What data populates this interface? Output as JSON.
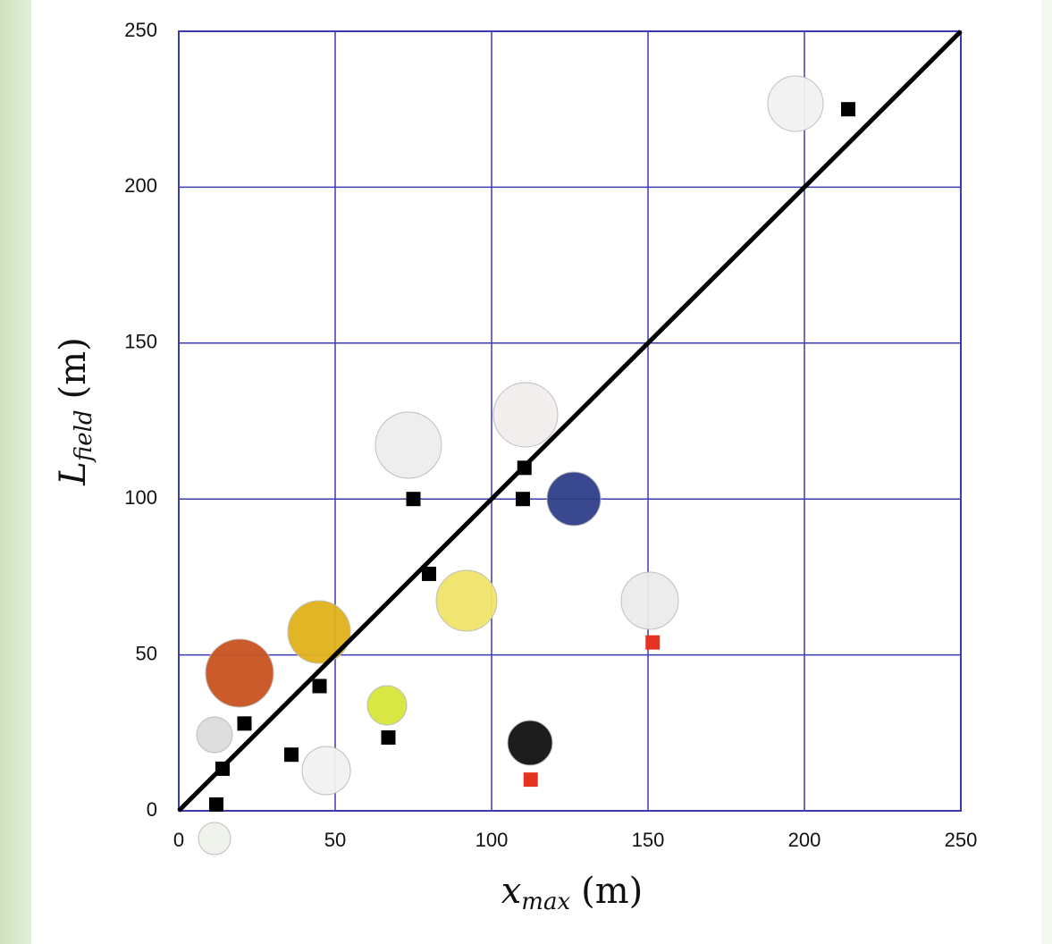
{
  "chart_data": {
    "type": "scatter",
    "xlabel": {
      "symbol": "x",
      "subscript": "max",
      "unit": "(m)"
    },
    "ylabel": {
      "symbol": "L",
      "subscript": "field",
      "unit": "(m)"
    },
    "xlim": [
      0,
      250
    ],
    "ylim": [
      0,
      250
    ],
    "xticks": [
      0,
      50,
      100,
      150,
      200,
      250
    ],
    "yticks": [
      0,
      50,
      100,
      150,
      200,
      250
    ],
    "grid": true,
    "grid_color": "#3b3bb0",
    "reference_line": {
      "x": [
        0,
        250
      ],
      "values": [
        0,
        250
      ],
      "color": "#000000"
    },
    "series": [
      {
        "color": "#000000",
        "x": [
          12,
          14,
          21,
          36,
          45,
          67,
          75,
          80,
          110,
          110.5,
          214
        ],
        "values": [
          2,
          13.5,
          28,
          18,
          40,
          23.5,
          100,
          76,
          100,
          110,
          225
        ]
      },
      {
        "color": "#e53322",
        "x": [
          112.5,
          151.5
        ],
        "values": [
          10,
          54
        ]
      }
    ]
  }
}
